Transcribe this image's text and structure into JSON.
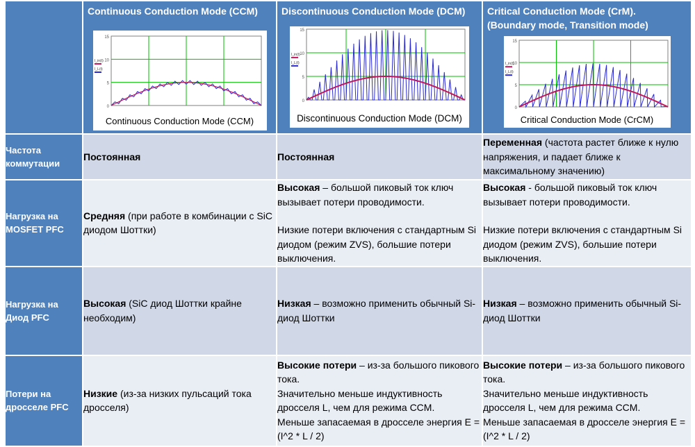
{
  "header": {
    "label_cell": "",
    "ccm_title": "Continuous Conduction Mode (CCM)",
    "dcm_title": "Discontinuous Conduction Mode (DCM)",
    "crm_title": "Critical Conduction Mode (CrM).\n(Boundary mode, Transition mode)"
  },
  "charts": {
    "ccm": {
      "caption": "Continuous Conduction Mode (CCM)",
      "y_ticks": [
        "15",
        "10",
        "5",
        "0"
      ],
      "legend_top": "I_in(t)",
      "legend_bottom": "I_L(t)",
      "ylim": [
        0,
        15
      ],
      "peak": 5,
      "cycles": 20,
      "ripple": 0.8,
      "colors": {
        "grid": "#00c000",
        "envelope": "#c0185a",
        "current": "#2a2ad0"
      }
    },
    "dcm": {
      "caption": "Discontinuous Conduction Mode (DCM)",
      "y_ticks": [
        "15",
        "10",
        "5",
        "0"
      ],
      "legend_top": "I_in(t)",
      "legend_bottom": "I_L(t)",
      "ylim": [
        0,
        15
      ],
      "peak": 5,
      "spike_peak": 14.8,
      "cycles": 28,
      "colors": {
        "grid": "#00c000",
        "envelope": "#c0185a",
        "current": "#2a2ad0"
      }
    },
    "crm": {
      "caption": "Critical Conduction Mode (CrCM)",
      "y_ticks": [
        "15",
        "10",
        "5",
        "0"
      ],
      "legend_top": "I_in(t)",
      "legend_bottom": "I_L(t)",
      "ylim": [
        0,
        15
      ],
      "peak": 5,
      "spike_peak": 9.8,
      "cycles": 22,
      "colors": {
        "grid": "#00c000",
        "envelope": "#c0185a",
        "current": "#2a2ad0"
      }
    }
  },
  "rows": [
    {
      "label": "Частота коммутации",
      "ccm": {
        "bold": "Постоянная",
        "rest": ""
      },
      "dcm": {
        "bold": "Постоянная",
        "rest": ""
      },
      "crm": {
        "bold": "Переменная",
        "rest": " (частота растет  ближе к нулю напряжения, и падает ближе к максимальному значению)"
      }
    },
    {
      "label": "Нагрузка на MOSFET PFC",
      "ccm": {
        "bold": "Средняя",
        "rest": " (при работе в комбинации с SiC диодом Шоттки)"
      },
      "dcm": {
        "bold": "Высокая",
        "rest": " – большой пиковый ток ключ вызывает потери проводимости.",
        "extra": "Низкие потери включения с стандартным Si диодом (режим ZVS), большие потери выключения."
      },
      "crm": {
        "bold": "Высокая",
        "rest": " - большой пиковый ток ключ вызывает потери проводимости.",
        "extra": "Низкие потери включения с стандартным Si диодом (режим ZVS), большие потери выключения."
      }
    },
    {
      "label": "Нагрузка на Диод PFC",
      "ccm": {
        "bold": "Высокая",
        "rest": " (SiC диод Шоттки крайне необходим)"
      },
      "dcm": {
        "bold": "Низкая",
        "rest": " – возможно применить обычный Si-диод Шоттки"
      },
      "crm": {
        "bold": "Низкая",
        "rest": " – возможно применить обычный Si-диод Шоттки"
      }
    },
    {
      "label": "Потери на дросселе PFC",
      "ccm": {
        "bold": "Низкие",
        "rest": " (из-за низких пульсаций тока дросселя)"
      },
      "dcm": {
        "bold": "Высокие потери",
        "rest": " – из-за большого пикового тока.",
        "extra2": "Значительно меньше индуктивность дросселя L, чем для режима CCM.",
        "extra3": "Меньше запасаемая в дросселе энергия E = (I^2 * L / 2)"
      },
      "crm": {
        "bold": "Высокие потери",
        "rest": " – из-за большого пикового тока.",
        "extra2": "Значительно меньше индуктивность дросселя L, чем для режима CCM.",
        "extra3": "Меньше запасаемая в дросселе энергия E = (I^2 * L / 2)"
      }
    }
  ]
}
